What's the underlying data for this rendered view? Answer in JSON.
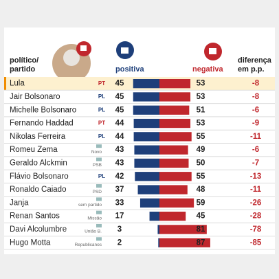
{
  "header": {
    "politician": "político/",
    "party": "partido",
    "positive": "positiva",
    "negative": "negativa",
    "difference_1": "diferença",
    "difference_2": "em p.p."
  },
  "rows": [
    {
      "name": "Lula",
      "party": "PT",
      "positive": 45,
      "negative": 53,
      "difference": -8
    },
    {
      "name": "Jair Bolsonaro",
      "party": "PL",
      "positive": 45,
      "negative": 53,
      "difference": -8
    },
    {
      "name": "Michelle Bolsonaro",
      "party": "PL",
      "positive": 45,
      "negative": 51,
      "difference": -6
    },
    {
      "name": "Fernando Haddad",
      "party": "PT",
      "positive": 44,
      "negative": 53,
      "difference": -9
    },
    {
      "name": "Nikolas Ferreira",
      "party": "PL",
      "positive": 44,
      "negative": 55,
      "difference": -11
    },
    {
      "name": "Romeu Zema",
      "party": "Novo",
      "positive": 43,
      "negative": 49,
      "difference": -6
    },
    {
      "name": "Geraldo Alckmin",
      "party": "PSB",
      "positive": 43,
      "negative": 50,
      "difference": -7
    },
    {
      "name": "Flávio Bolsonaro",
      "party": "PL",
      "positive": 42,
      "negative": 55,
      "difference": -13
    },
    {
      "name": "Ronaldo Caiado",
      "party": "PSD",
      "positive": 37,
      "negative": 48,
      "difference": -11
    },
    {
      "name": "Janja",
      "party": "sem partido",
      "positive": 33,
      "negative": 59,
      "difference": -26
    },
    {
      "name": "Renan Santos",
      "party": "Missão",
      "positive": 17,
      "negative": 45,
      "difference": -28
    },
    {
      "name": "Davi Alcolumbre",
      "party": "União B.",
      "positive": 3,
      "negative": 81,
      "difference": -78
    },
    {
      "name": "Hugo Motta",
      "party": "Republicanos",
      "positive": 2,
      "negative": 87,
      "difference": -85
    }
  ]
}
